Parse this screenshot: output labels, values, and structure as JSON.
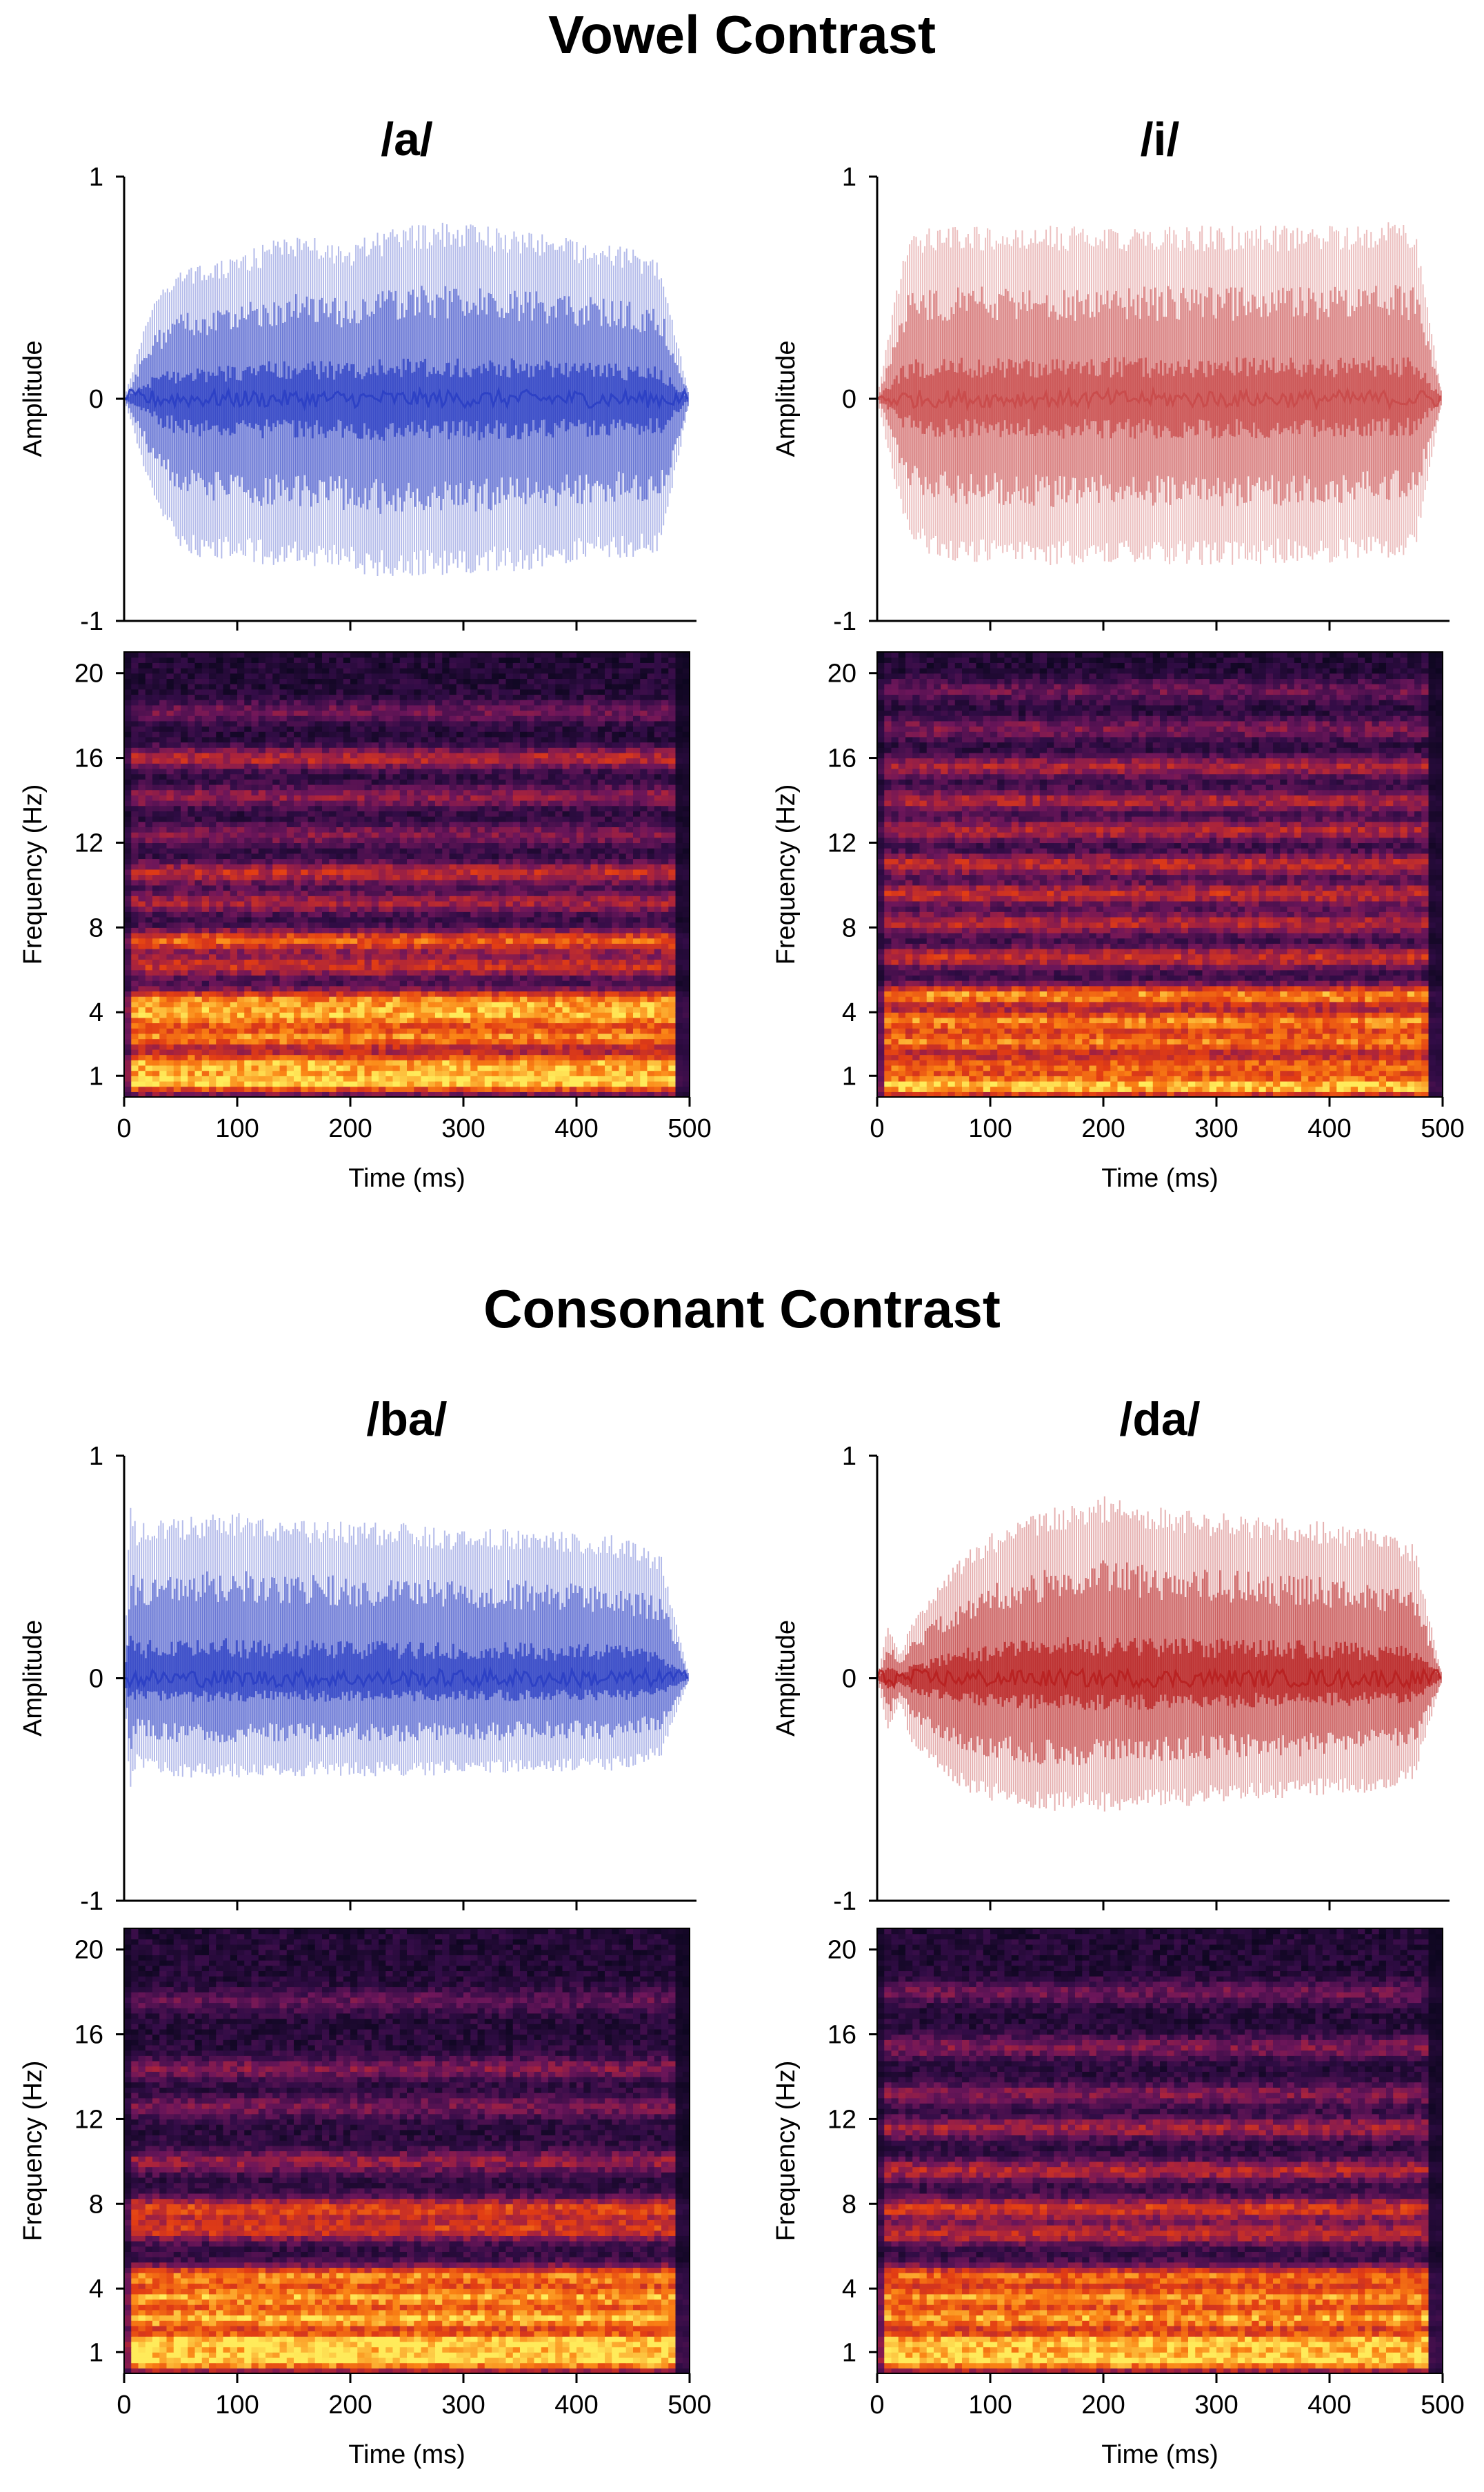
{
  "sections": [
    {
      "title": "Vowel Contrast"
    },
    {
      "title": "Consonant Contrast"
    }
  ],
  "chart_data": [
    {
      "type": "area",
      "panel": "/a/",
      "title": "/a/",
      "description_kind": "waveform",
      "xlabel": "",
      "ylabel": "Amplitude",
      "xlim": [
        0,
        500
      ],
      "ylim": [
        -1,
        1
      ],
      "yticks": [
        -1,
        0,
        1
      ],
      "color": "#2b3fc4",
      "x": [
        0,
        25,
        50,
        75,
        100,
        125,
        150,
        175,
        200,
        225,
        250,
        275,
        300,
        325,
        350,
        375,
        400,
        425,
        450,
        475,
        500
      ],
      "upper": [
        0.0,
        0.45,
        0.6,
        0.6,
        0.65,
        0.7,
        0.75,
        0.72,
        0.7,
        0.75,
        0.78,
        0.8,
        0.8,
        0.78,
        0.75,
        0.75,
        0.72,
        0.7,
        0.68,
        0.62,
        0.0
      ],
      "lower": [
        0.0,
        -0.45,
        -0.7,
        -0.72,
        -0.72,
        -0.75,
        -0.75,
        -0.76,
        -0.78,
        -0.8,
        -0.8,
        -0.8,
        -0.8,
        -0.78,
        -0.78,
        -0.76,
        -0.74,
        -0.72,
        -0.72,
        -0.7,
        0.0
      ]
    },
    {
      "type": "area",
      "panel": "/i/",
      "title": "/i/",
      "description_kind": "waveform",
      "xlabel": "",
      "ylabel": "Amplitude",
      "xlim": [
        0,
        500
      ],
      "ylim": [
        -1,
        1
      ],
      "yticks": [
        -1,
        0,
        1
      ],
      "color": "#c94a4a",
      "x": [
        0,
        25,
        50,
        75,
        100,
        125,
        150,
        175,
        200,
        225,
        250,
        275,
        300,
        325,
        350,
        375,
        400,
        425,
        450,
        475,
        500
      ],
      "upper": [
        0.0,
        0.72,
        0.78,
        0.78,
        0.78,
        0.78,
        0.78,
        0.78,
        0.78,
        0.78,
        0.78,
        0.78,
        0.78,
        0.78,
        0.78,
        0.78,
        0.78,
        0.78,
        0.8,
        0.78,
        0.0
      ],
      "lower": [
        0.0,
        -0.6,
        -0.72,
        -0.74,
        -0.74,
        -0.74,
        -0.75,
        -0.75,
        -0.75,
        -0.75,
        -0.75,
        -0.75,
        -0.75,
        -0.75,
        -0.74,
        -0.74,
        -0.74,
        -0.72,
        -0.72,
        -0.7,
        0.0
      ]
    },
    {
      "type": "heatmap",
      "panel": "/a/",
      "description_kind": "spectrogram",
      "xlabel": "Time (ms)",
      "ylabel": "Frequency (Hz)",
      "xlim": [
        0,
        500
      ],
      "xticks": [
        0,
        100,
        200,
        300,
        400,
        500
      ],
      "ylim": [
        0,
        21
      ],
      "yticks": [
        1,
        4,
        8,
        12,
        16,
        20
      ],
      "bands": [
        {
          "freq": 0.7,
          "intensity": 1.0
        },
        {
          "freq": 1.6,
          "intensity": 0.9
        },
        {
          "freq": 2.8,
          "intensity": 0.85
        },
        {
          "freq": 3.8,
          "intensity": 0.85
        },
        {
          "freq": 4.6,
          "intensity": 0.8
        },
        {
          "freq": 6.2,
          "intensity": 0.6
        },
        {
          "freq": 7.4,
          "intensity": 0.8
        },
        {
          "freq": 9.2,
          "intensity": 0.5
        },
        {
          "freq": 10.6,
          "intensity": 0.6
        },
        {
          "freq": 12.4,
          "intensity": 0.4
        },
        {
          "freq": 14.2,
          "intensity": 0.45
        },
        {
          "freq": 16.0,
          "intensity": 0.6
        },
        {
          "freq": 18.2,
          "intensity": 0.35
        }
      ]
    },
    {
      "type": "heatmap",
      "panel": "/i/",
      "description_kind": "spectrogram",
      "xlabel": "Time (ms)",
      "ylabel": "Frequency (Hz)",
      "xlim": [
        0,
        500
      ],
      "xticks": [
        0,
        100,
        200,
        300,
        400,
        500
      ],
      "ylim": [
        0,
        21
      ],
      "yticks": [
        1,
        4,
        8,
        12,
        16,
        20
      ],
      "bands": [
        {
          "freq": 0.5,
          "intensity": 1.0
        },
        {
          "freq": 1.5,
          "intensity": 0.75
        },
        {
          "freq": 2.6,
          "intensity": 0.8
        },
        {
          "freq": 3.6,
          "intensity": 0.85
        },
        {
          "freq": 4.8,
          "intensity": 0.9
        },
        {
          "freq": 6.6,
          "intensity": 0.6
        },
        {
          "freq": 8.2,
          "intensity": 0.55
        },
        {
          "freq": 9.6,
          "intensity": 0.6
        },
        {
          "freq": 11.0,
          "intensity": 0.6
        },
        {
          "freq": 12.6,
          "intensity": 0.55
        },
        {
          "freq": 14.0,
          "intensity": 0.55
        },
        {
          "freq": 15.6,
          "intensity": 0.55
        },
        {
          "freq": 17.4,
          "intensity": 0.4
        },
        {
          "freq": 19.2,
          "intensity": 0.35
        }
      ]
    },
    {
      "type": "area",
      "panel": "/ba/",
      "title": "/ba/",
      "description_kind": "waveform",
      "xlabel": "",
      "ylabel": "Amplitude",
      "xlim": [
        0,
        500
      ],
      "ylim": [
        -1,
        1
      ],
      "yticks": [
        -1,
        0,
        1
      ],
      "color": "#2b3fc4",
      "x": [
        0,
        5,
        10,
        25,
        50,
        75,
        100,
        125,
        150,
        175,
        200,
        225,
        250,
        275,
        300,
        325,
        350,
        375,
        400,
        425,
        450,
        475,
        500
      ],
      "upper": [
        0.0,
        0.85,
        0.7,
        0.72,
        0.72,
        0.75,
        0.75,
        0.72,
        0.7,
        0.72,
        0.7,
        0.7,
        0.7,
        0.68,
        0.68,
        0.68,
        0.68,
        0.66,
        0.66,
        0.65,
        0.62,
        0.55,
        0.0
      ],
      "lower": [
        0.0,
        -0.55,
        -0.4,
        -0.42,
        -0.45,
        -0.45,
        -0.45,
        -0.44,
        -0.44,
        -0.44,
        -0.44,
        -0.44,
        -0.44,
        -0.44,
        -0.43,
        -0.43,
        -0.43,
        -0.42,
        -0.42,
        -0.42,
        -0.4,
        -0.35,
        0.0
      ]
    },
    {
      "type": "area",
      "panel": "/da/",
      "title": "/da/",
      "description_kind": "waveform",
      "xlabel": "",
      "ylabel": "Amplitude",
      "xlim": [
        0,
        500
      ],
      "ylim": [
        -1,
        1
      ],
      "yticks": [
        -1,
        0,
        1
      ],
      "color": "#b82020",
      "x": [
        0,
        10,
        20,
        30,
        50,
        75,
        100,
        125,
        150,
        175,
        200,
        225,
        250,
        275,
        300,
        325,
        350,
        375,
        400,
        425,
        450,
        475,
        500
      ],
      "upper": [
        0.0,
        0.25,
        0.1,
        0.25,
        0.4,
        0.55,
        0.65,
        0.72,
        0.76,
        0.8,
        0.82,
        0.8,
        0.78,
        0.76,
        0.75,
        0.74,
        0.72,
        0.72,
        0.7,
        0.68,
        0.65,
        0.6,
        0.0
      ],
      "lower": [
        0.0,
        -0.25,
        -0.1,
        -0.3,
        -0.4,
        -0.5,
        -0.55,
        -0.58,
        -0.6,
        -0.6,
        -0.6,
        -0.6,
        -0.58,
        -0.58,
        -0.56,
        -0.55,
        -0.54,
        -0.54,
        -0.52,
        -0.52,
        -0.5,
        -0.45,
        0.0
      ]
    },
    {
      "type": "heatmap",
      "panel": "/ba/",
      "description_kind": "spectrogram",
      "xlabel": "Time (ms)",
      "ylabel": "Frequency (Hz)",
      "xlim": [
        0,
        500
      ],
      "xticks": [
        0,
        100,
        200,
        300,
        400,
        500
      ],
      "ylim": [
        0,
        21
      ],
      "yticks": [
        1,
        4,
        8,
        12,
        16,
        20
      ],
      "bands": [
        {
          "freq": 0.6,
          "intensity": 1.0
        },
        {
          "freq": 1.5,
          "intensity": 1.0
        },
        {
          "freq": 2.6,
          "intensity": 0.95
        },
        {
          "freq": 3.6,
          "intensity": 0.9
        },
        {
          "freq": 4.6,
          "intensity": 0.85
        },
        {
          "freq": 6.8,
          "intensity": 0.65
        },
        {
          "freq": 7.8,
          "intensity": 0.7
        },
        {
          "freq": 10.0,
          "intensity": 0.45
        },
        {
          "freq": 12.6,
          "intensity": 0.35
        },
        {
          "freq": 14.4,
          "intensity": 0.4
        },
        {
          "freq": 17.6,
          "intensity": 0.3
        }
      ]
    },
    {
      "type": "heatmap",
      "panel": "/da/",
      "description_kind": "spectrogram",
      "xlabel": "Time (ms)",
      "ylabel": "Frequency (Hz)",
      "xlim": [
        0,
        500
      ],
      "xticks": [
        0,
        100,
        200,
        300,
        400,
        500
      ],
      "ylim": [
        0,
        21
      ],
      "yticks": [
        1,
        4,
        8,
        12,
        16,
        20
      ],
      "bands": [
        {
          "freq": 0.6,
          "intensity": 1.0
        },
        {
          "freq": 1.5,
          "intensity": 0.95
        },
        {
          "freq": 2.6,
          "intensity": 0.9
        },
        {
          "freq": 3.6,
          "intensity": 0.85
        },
        {
          "freq": 4.6,
          "intensity": 0.8
        },
        {
          "freq": 6.6,
          "intensity": 0.55
        },
        {
          "freq": 7.8,
          "intensity": 0.65
        },
        {
          "freq": 9.6,
          "intensity": 0.55
        },
        {
          "freq": 11.6,
          "intensity": 0.5
        },
        {
          "freq": 13.2,
          "intensity": 0.4
        },
        {
          "freq": 15.4,
          "intensity": 0.4
        },
        {
          "freq": 18.0,
          "intensity": 0.35
        }
      ]
    }
  ]
}
